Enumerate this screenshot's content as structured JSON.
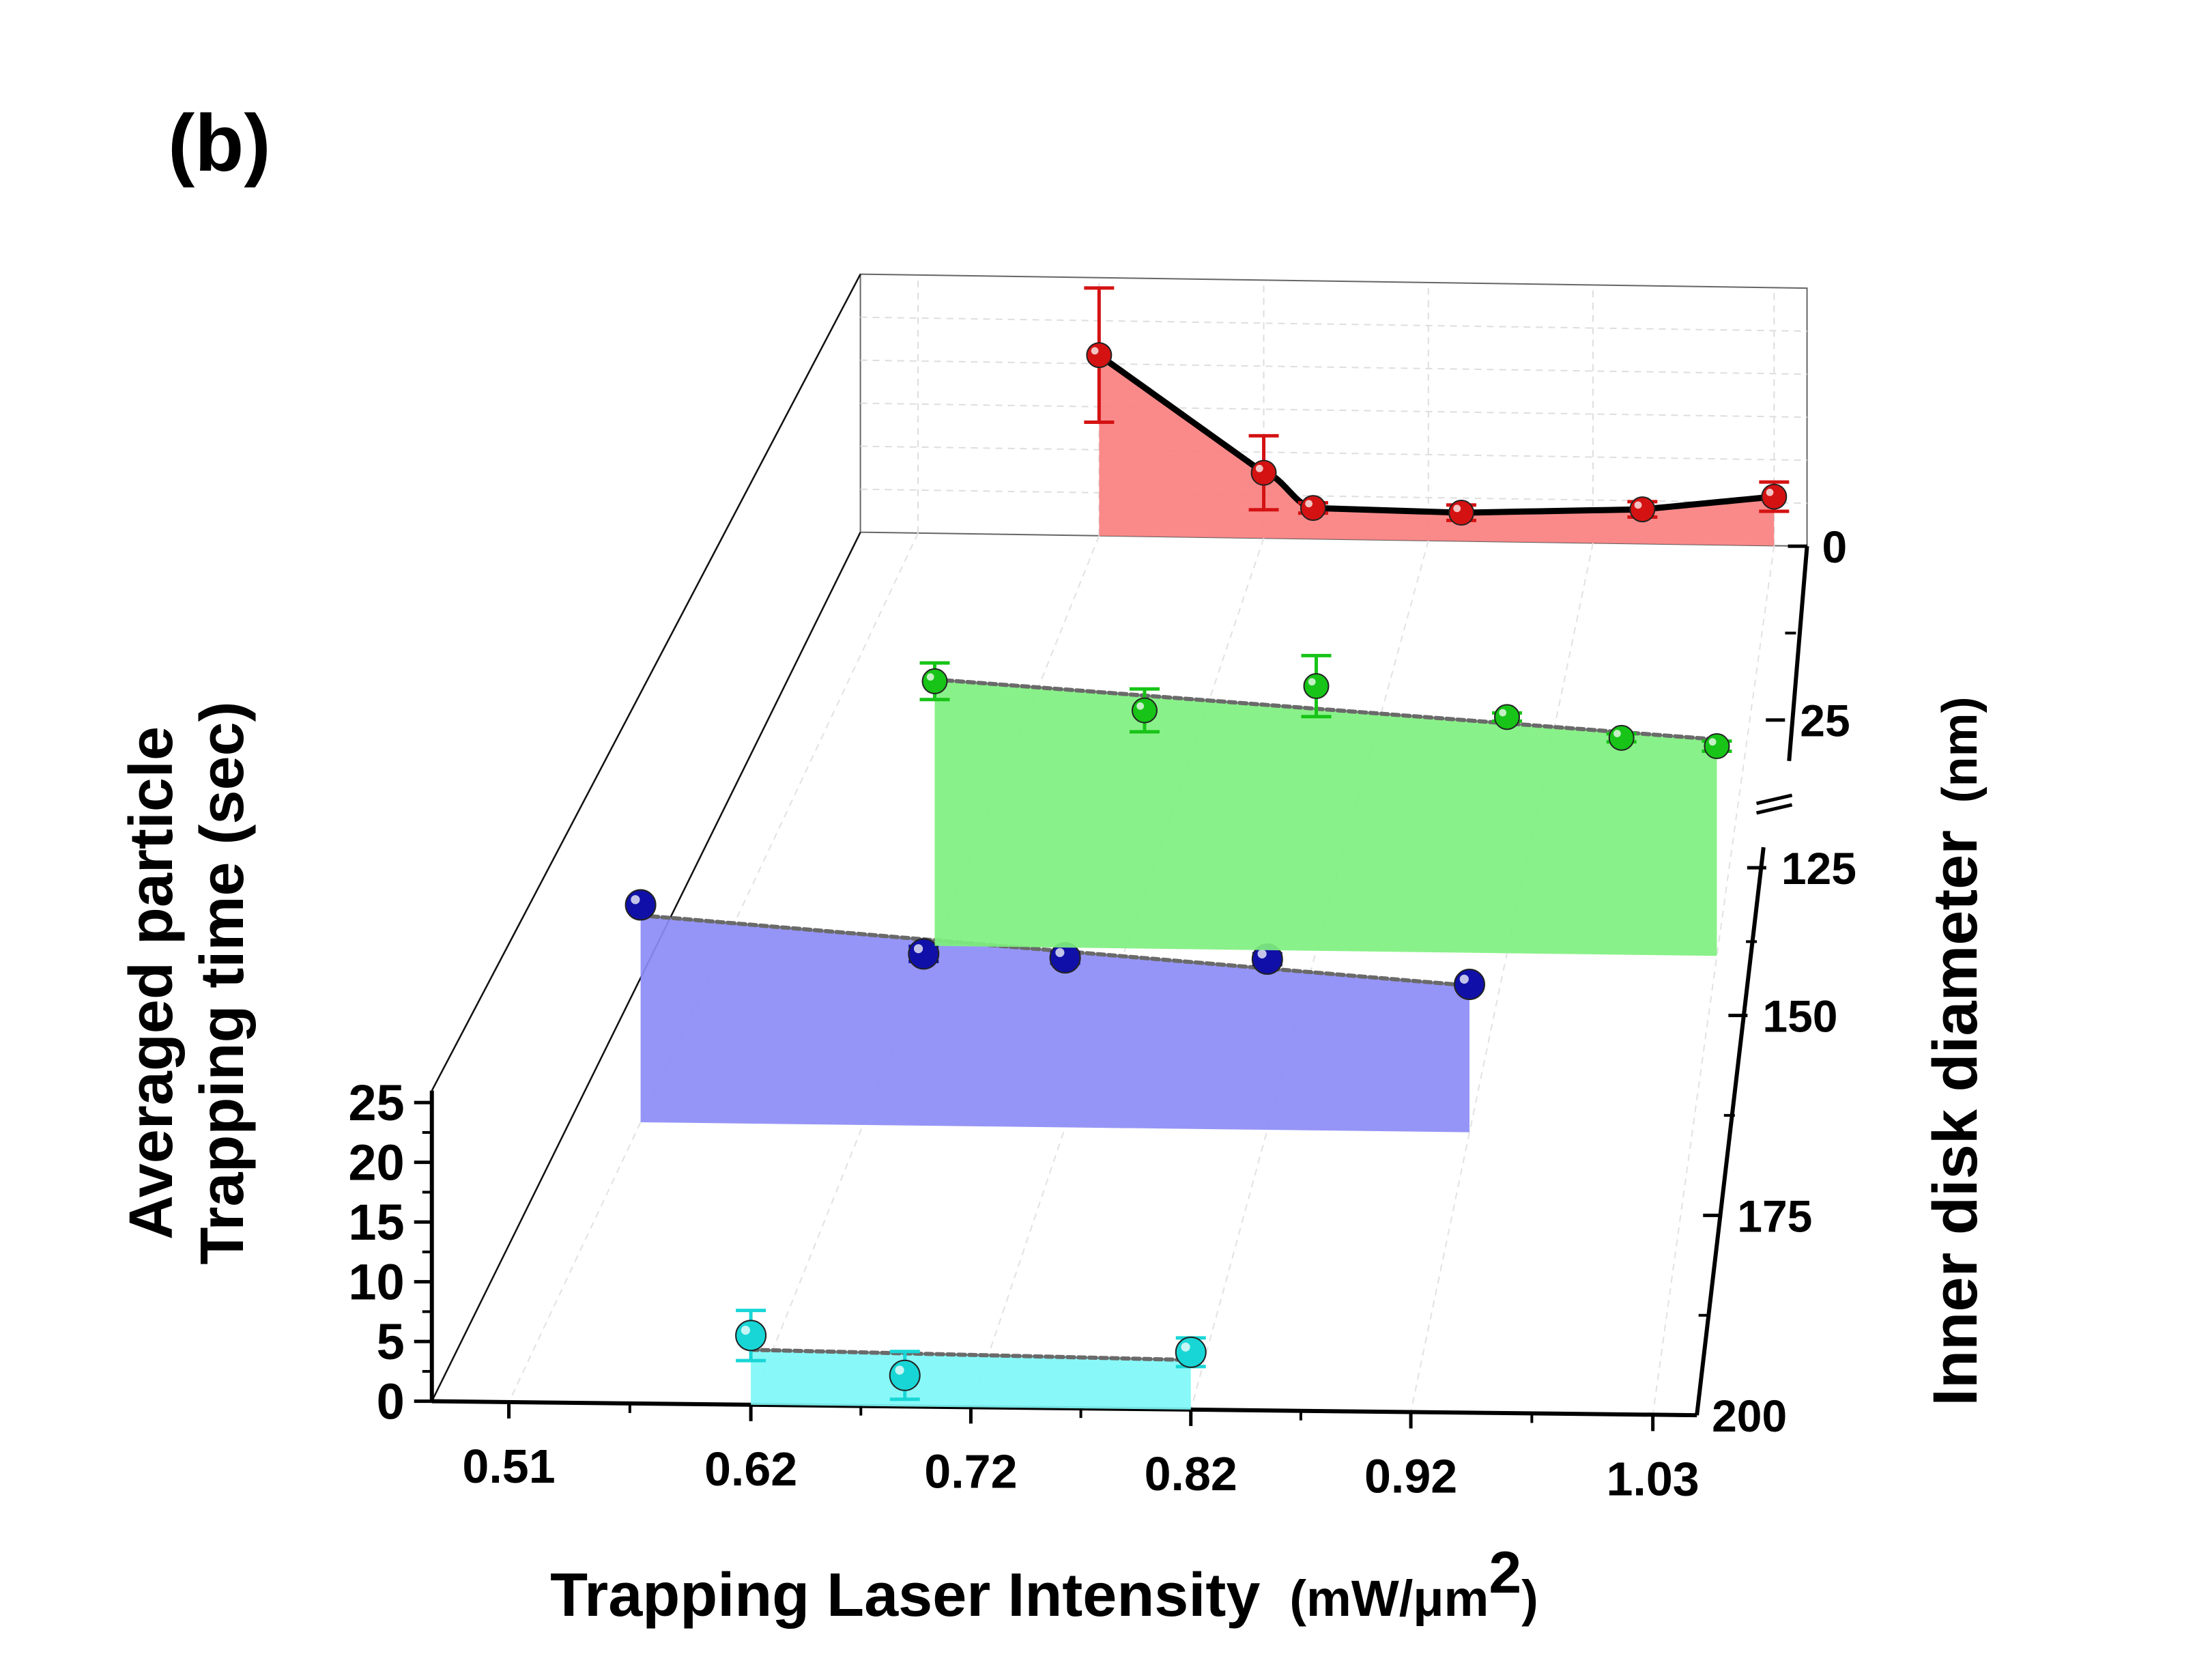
{
  "chart_data": {
    "type": "3d-line-waterfall",
    "panel_label": "(b)",
    "xlabel_main": "Trapping Laser Intensity",
    "xlabel_unit_open": "(mW/μm",
    "xlabel_unit_sup": "2",
    "xlabel_unit_close": ")",
    "ylabel_line1": "Averaged particle",
    "ylabel_line2": "Trapping time (sec)",
    "zlabel_main": "Inner disk diameter",
    "zlabel_unit": "(nm)",
    "x_ticks": [
      "0.51",
      "0.62",
      "0.72",
      "0.82",
      "0.92",
      "1.03"
    ],
    "y_ticks": [
      "0",
      "5",
      "10",
      "15",
      "20",
      "25"
    ],
    "z_ticks_lower": [
      "125",
      "150",
      "175",
      "200"
    ],
    "z_ticks_upper": [
      "0",
      "25"
    ],
    "xlim": [
      0.51,
      1.03
    ],
    "ylim": [
      0,
      25
    ],
    "axis_break": "z between 25 and 125",
    "series": [
      {
        "name": "200 nm",
        "diameter": 200,
        "color": "#19d6d6",
        "fill": "#7ff7f7",
        "x": [
          0.62,
          0.69,
          0.82
        ],
        "y": [
          5.8,
          2.6,
          4.8
        ],
        "err": [
          2.1,
          2.0,
          1.2
        ],
        "fit": "linear-dashed"
      },
      {
        "name": "165 nm",
        "diameter": 165,
        "color": "#1010a8",
        "fill": "#8c8cf6",
        "x": [
          0.51,
          0.65,
          0.72,
          0.82,
          0.92
        ],
        "y": [
          20.0,
          15.8,
          15.6,
          15.7,
          13.6
        ],
        "err": [
          0.0,
          0.7,
          0.5,
          0.5,
          0.0
        ],
        "fit": "linear-dashed"
      },
      {
        "name": "140 nm",
        "diameter": 140,
        "color": "#17c417",
        "fill": "#7ff07f",
        "x": [
          0.62,
          0.73,
          0.82,
          0.92,
          0.98,
          1.03
        ],
        "y": [
          26.0,
          23.4,
          26.0,
          23.2,
          21.3,
          20.6
        ],
        "err": [
          1.8,
          2.1,
          3.0,
          0.4,
          0.4,
          0.5
        ],
        "fit": "linear-dashed"
      },
      {
        "name": "0 nm",
        "diameter": 0,
        "color": "#d41212",
        "fill": "#fa8080",
        "x": [
          0.62,
          0.72,
          0.75,
          0.84,
          0.95,
          1.03
        ],
        "y": [
          21.0,
          7.6,
          3.6,
          3.3,
          4.0,
          5.7
        ],
        "err": [
          7.8,
          4.3,
          0.6,
          0.9,
          0.9,
          1.7
        ],
        "fit": "smooth-solid"
      }
    ]
  }
}
